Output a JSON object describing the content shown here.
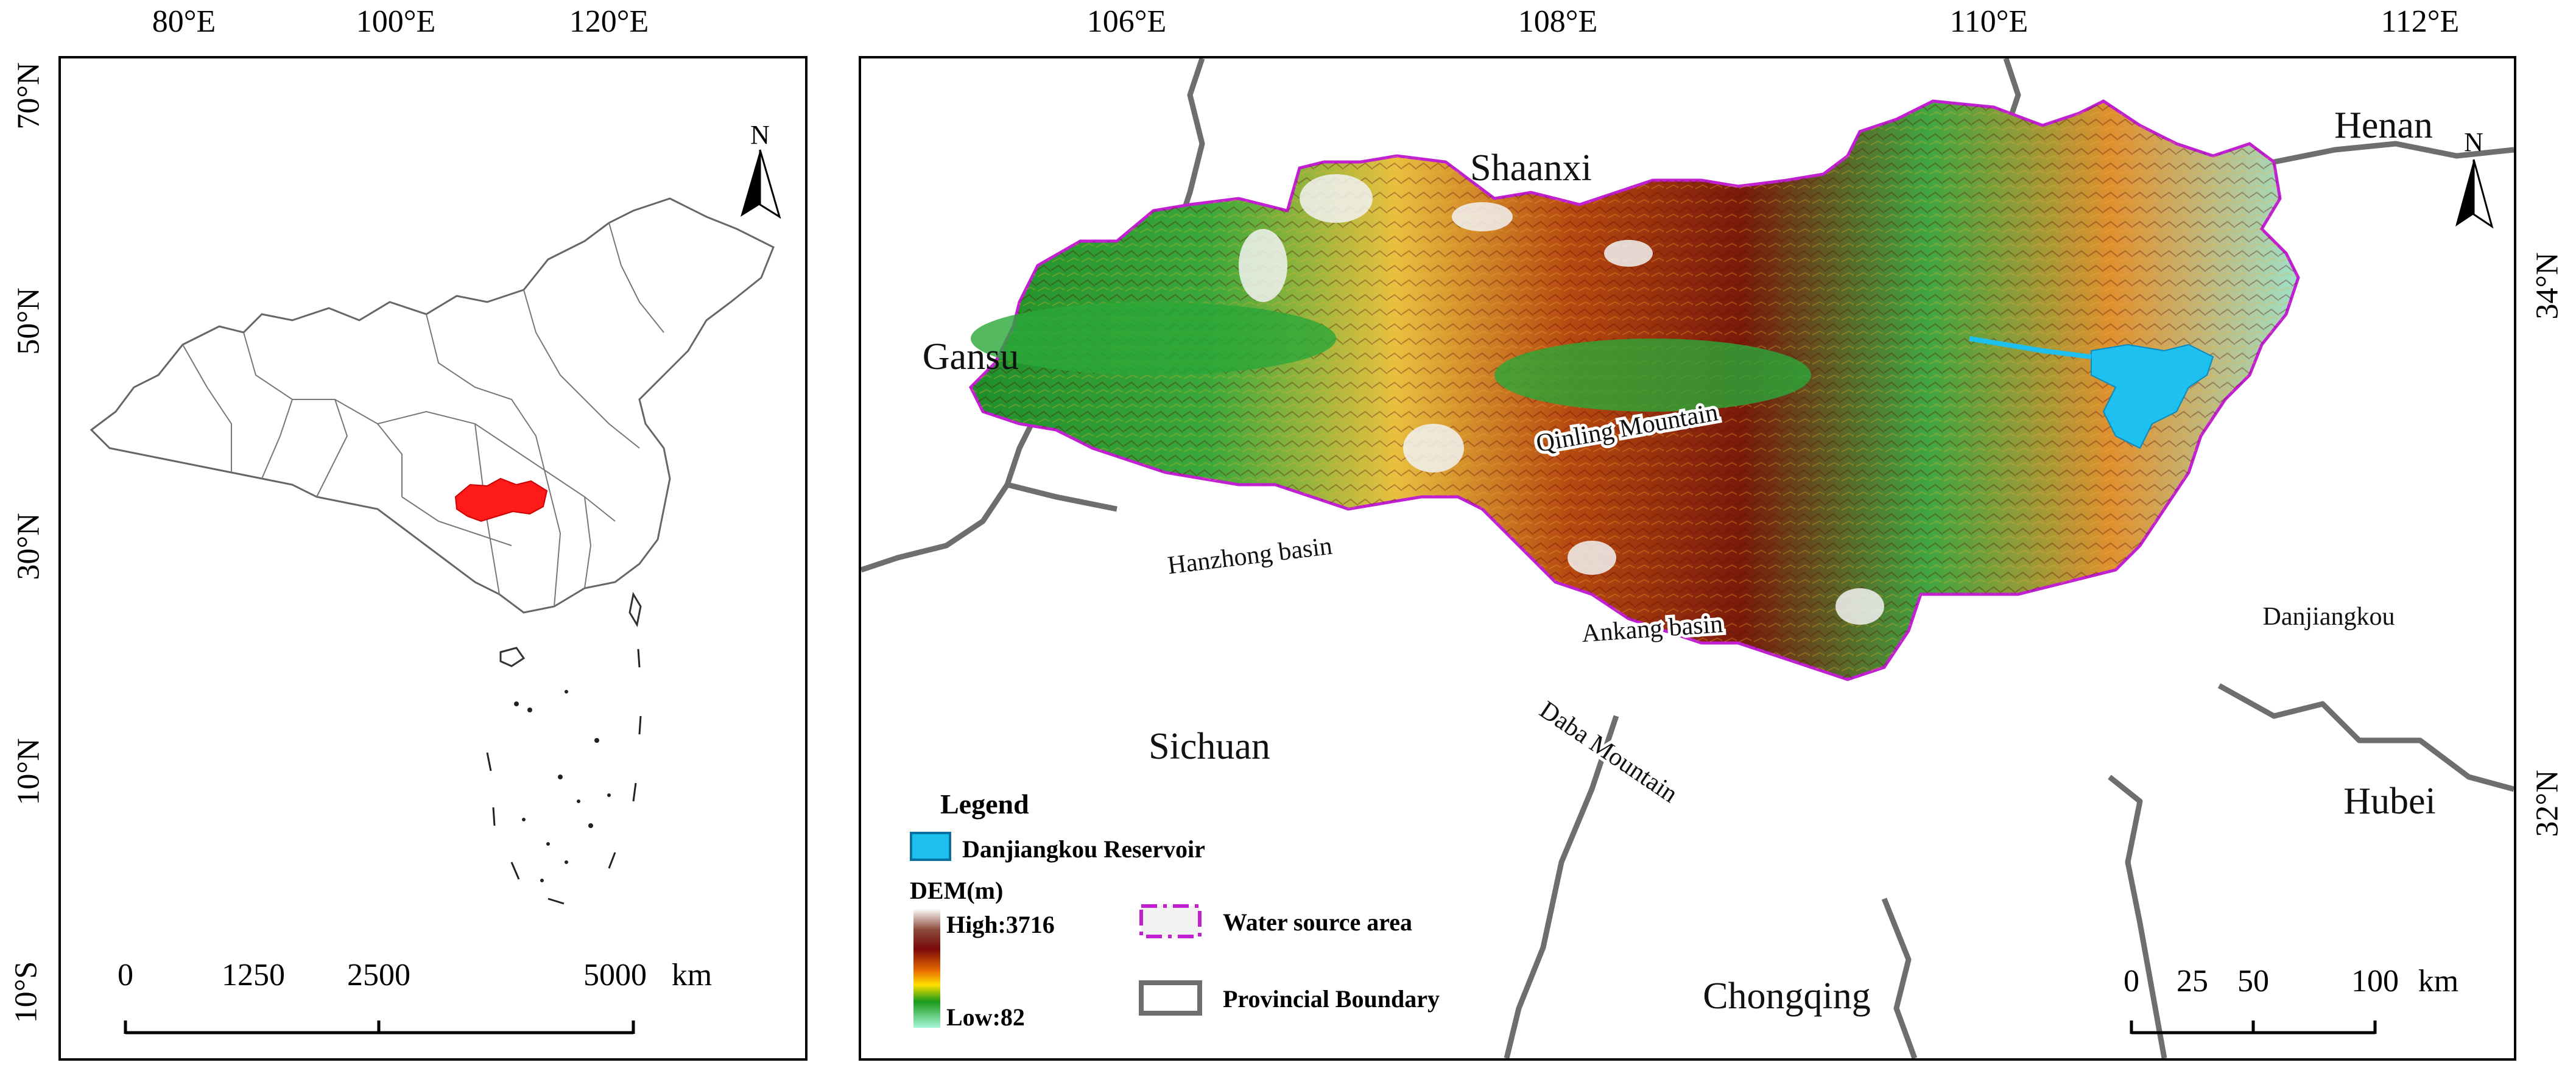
{
  "left_map": {
    "top_ticks": [
      "80°E",
      "100°E",
      "120°E"
    ],
    "left_ticks": [
      "70°N",
      "50°N",
      "30°N",
      "10°N",
      "10°S"
    ],
    "north_label": "N",
    "scale": {
      "labels": [
        "0",
        "1250",
        "2500",
        "5000"
      ],
      "unit": "km"
    },
    "highlight_color": "#ff1a1a"
  },
  "right_map": {
    "top_ticks": [
      "106°E",
      "108°E",
      "110°E",
      "112°E"
    ],
    "right_ticks": [
      "34°N",
      "32°N"
    ],
    "north_label": "N",
    "provinces": [
      "Shaanxi",
      "Henan",
      "Gansu",
      "Sichuan",
      "Hubei",
      "Chongqing"
    ],
    "features": [
      "Qinling Mountain",
      "Hanzhong basin",
      "Ankang basin",
      "Daba Mountain",
      "Danjiangkou"
    ],
    "legend": {
      "title": "Legend",
      "reservoir": "Danjiangkou Reservoir",
      "dem_title": "DEM(m)",
      "dem_high": "High:3716",
      "dem_low": "Low:82",
      "water_source": "Water source area",
      "boundary": "Provincial Boundary"
    },
    "scale": {
      "labels": [
        "0",
        "25",
        "50",
        "100"
      ],
      "unit": "km"
    },
    "colors": {
      "reservoir": "#1ec0f0",
      "boundary": "#6e6e6e",
      "water_source": "#c020d0"
    }
  }
}
